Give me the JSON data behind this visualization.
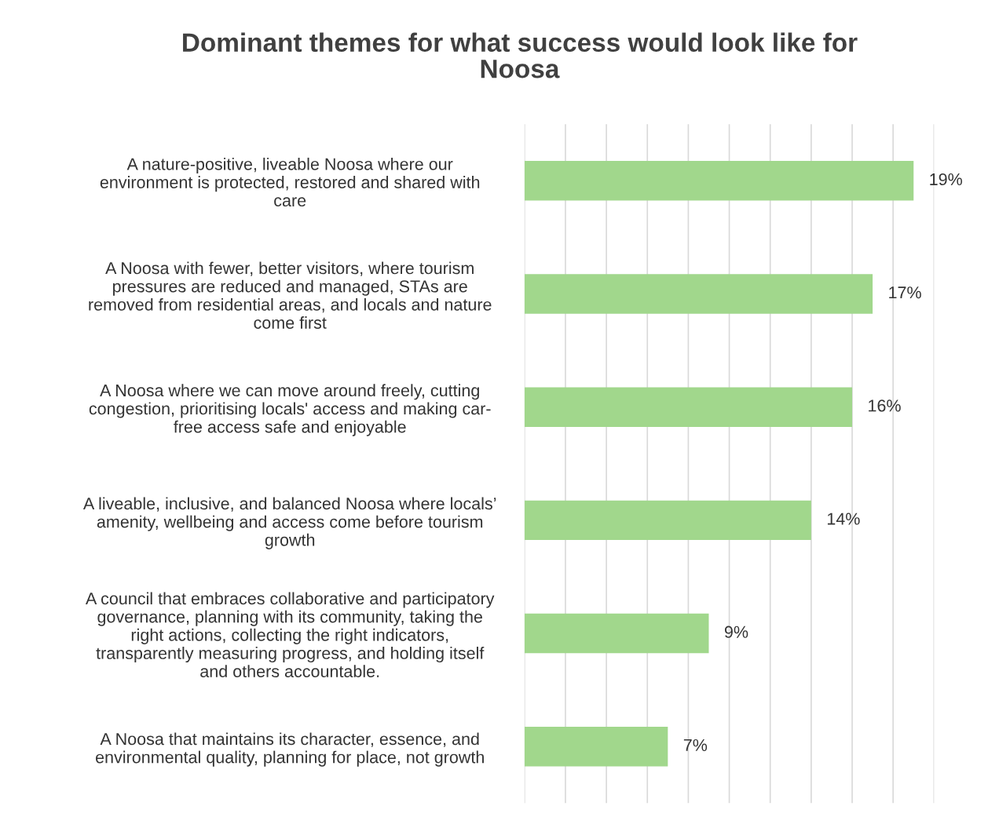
{
  "chart_data": {
    "type": "bar",
    "orientation": "horizontal",
    "title": "Dominant themes for what success would look like for\nNoosa",
    "categories": [
      "A nature-positive, liveable Noosa where our\nenvironment is protected, restored and shared with\ncare",
      "A Noosa with fewer, better visitors, where tourism\npressures are reduced and managed, STAs are\nremoved from residential areas, and locals and nature\ncome first",
      "A Noosa where we can move around freely, cutting\ncongestion, prioritising locals' access and making car-\nfree access safe and enjoyable",
      "A liveable, inclusive, and balanced Noosa where locals’\namenity, wellbeing and access come before tourism\ngrowth",
      "A council that embraces collaborative and participatory\ngovernance, planning with its community, taking the\nright actions, collecting the right indicators,\ntransparently measuring progress, and holding itself\nand others accountable.",
      "A Noosa that maintains its character, essence, and\nenvironmental quality, planning for place, not growth"
    ],
    "values": [
      19,
      17,
      16,
      14,
      9,
      7
    ],
    "value_labels": [
      "19%",
      "17%",
      "16%",
      "14%",
      "9%",
      "7%"
    ],
    "color": "#a1d78c",
    "xlim": [
      0,
      20
    ],
    "xticks": [
      {
        "value": 0,
        "label": null
      },
      {
        "value": 2,
        "label": null
      },
      {
        "value": 4,
        "label": null
      },
      {
        "value": 6,
        "label": null
      },
      {
        "value": 8,
        "label": null
      },
      {
        "value": 10,
        "label": null
      },
      {
        "value": 12,
        "label": null
      },
      {
        "value": 14,
        "label": null
      },
      {
        "value": 16,
        "label": null
      },
      {
        "value": 18,
        "label": null
      },
      {
        "value": 20,
        "label": null
      }
    ],
    "grid": "x",
    "tick_labels": "y",
    "legend": false
  }
}
